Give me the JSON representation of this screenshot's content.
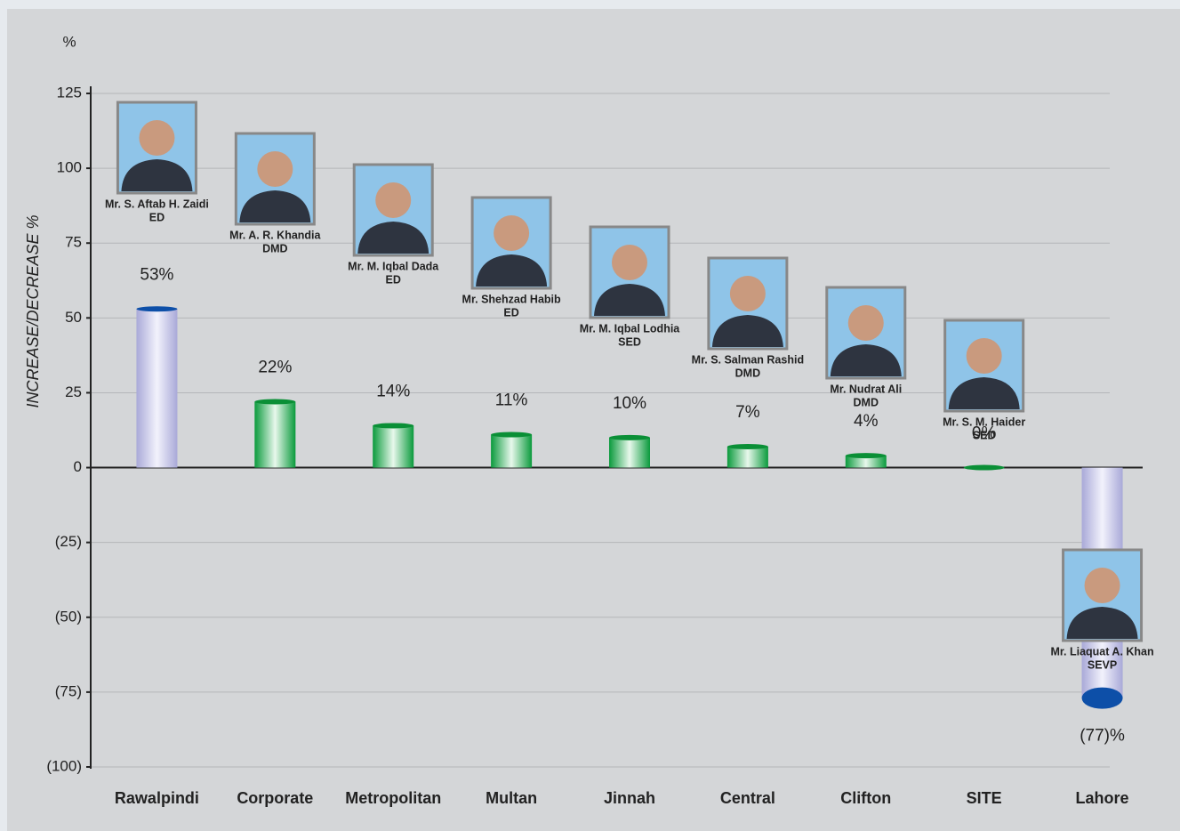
{
  "chart_data": {
    "type": "bar",
    "y_unit": "%",
    "ylabel": "INCREASE/DECREASE %",
    "categories": [
      "Rawalpindi",
      "Corporate",
      "Metropolitan",
      "Multan",
      "Jinnah",
      "Central",
      "Clifton",
      "SITE",
      "Lahore"
    ],
    "values": [
      53,
      22,
      14,
      11,
      10,
      7,
      4,
      0,
      -77
    ],
    "value_labels": [
      "53%",
      "22%",
      "14%",
      "11%",
      "10%",
      "7%",
      "4%",
      "0%",
      "(77)%"
    ],
    "colors": [
      "#c9c9ea",
      "#1fb04f",
      "#1fb04f",
      "#1fb04f",
      "#1fb04f",
      "#1fb04f",
      "#1fb04f",
      "#1fb04f",
      "#c9c9ea"
    ],
    "people": [
      {
        "name": "Mr. S. Aftab H. Zaidi",
        "designation": "ED"
      },
      {
        "name": "Mr. A. R. Khandia",
        "designation": "DMD"
      },
      {
        "name": "Mr. M. Iqbal Dada",
        "designation": "ED"
      },
      {
        "name": "Mr. Shehzad Habib",
        "designation": "ED"
      },
      {
        "name": "Mr. M. Iqbal Lodhia",
        "designation": "SED"
      },
      {
        "name": "Mr. S. Salman Rashid",
        "designation": "DMD"
      },
      {
        "name": "Mr. Nudrat Ali",
        "designation": "DMD"
      },
      {
        "name": "Mr. S. M. Haider",
        "designation": "SED"
      },
      {
        "name": "Mr. Liaquat A. Khan",
        "designation": "SEVP"
      }
    ],
    "ylim": [
      -100,
      125
    ],
    "yticks": [
      125,
      100,
      75,
      50,
      25,
      0,
      {
        "value": -25,
        "label": "(25)"
      },
      {
        "value": -50,
        "label": "(50)"
      },
      {
        "value": -75,
        "label": "(75)"
      },
      {
        "value": -100,
        "label": "(100)"
      }
    ],
    "grid": true
  }
}
